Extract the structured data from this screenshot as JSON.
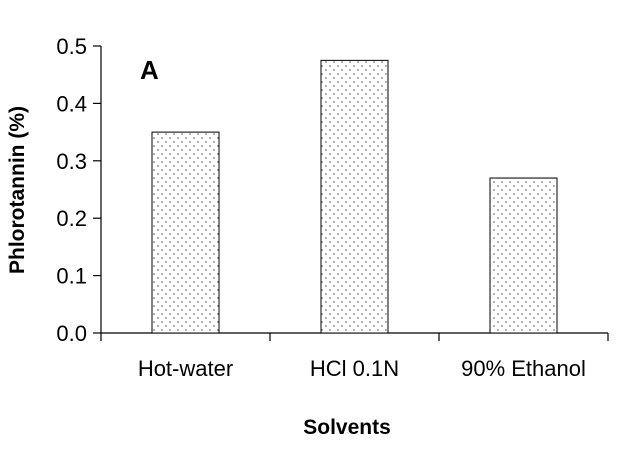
{
  "chart_data": {
    "type": "bar",
    "panel_label": "A",
    "categories": [
      "Hot-water",
      "HCl 0.1N",
      "90% Ethanol"
    ],
    "values": [
      0.35,
      0.475,
      0.27
    ],
    "xlabel": "Solvents",
    "ylabel": "Phlorotannin (%)",
    "ylim": [
      0,
      0.5
    ],
    "yticks": [
      "0.0",
      "0.1",
      "0.2",
      "0.3",
      "0.4",
      "0.5"
    ],
    "bar_fill": "dotted pattern",
    "grid": false,
    "legend": "none"
  }
}
